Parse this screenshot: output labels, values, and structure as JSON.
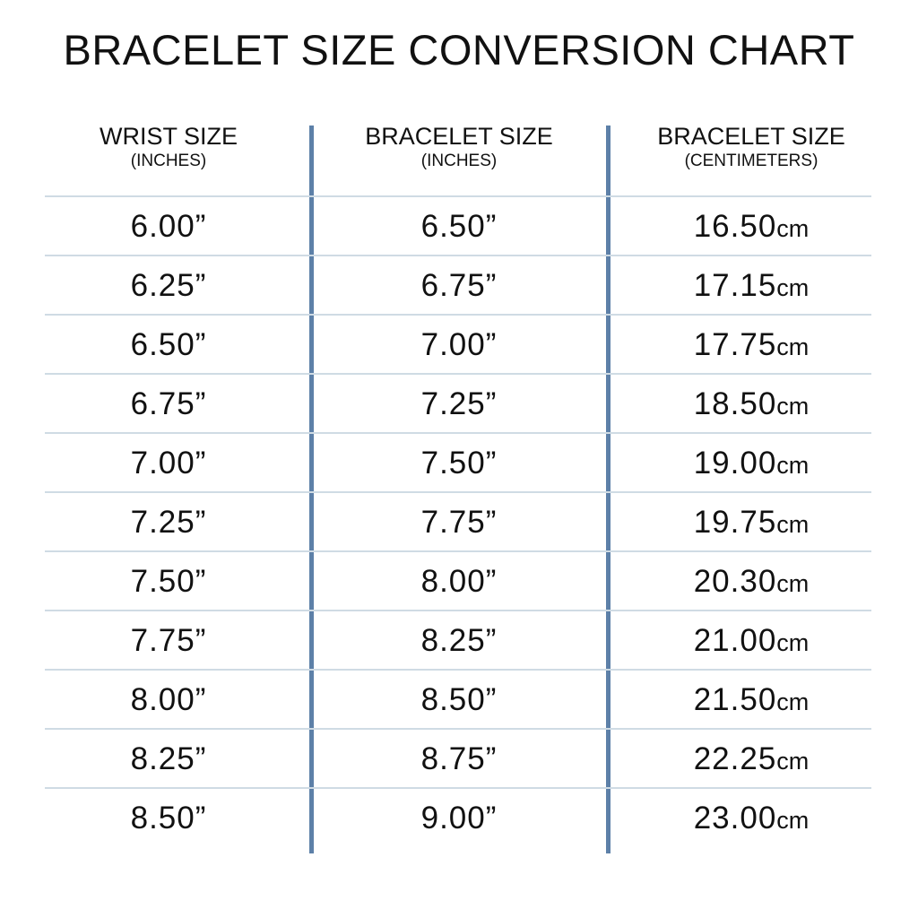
{
  "chart_data": {
    "type": "table",
    "title": "BRACELET SIZE CONVERSION CHART",
    "columns": [
      {
        "label": "WRIST SIZE",
        "sublabel": "(INCHES)"
      },
      {
        "label": "BRACELET SIZE",
        "sublabel": "(INCHES)"
      },
      {
        "label": "BRACELET SIZE",
        "sublabel": "(CENTIMETERS)"
      }
    ],
    "rows": [
      [
        "6.00”",
        "6.50”",
        "16.50"
      ],
      [
        "6.25”",
        "6.75”",
        "17.15"
      ],
      [
        "6.50”",
        "7.00”",
        "17.75"
      ],
      [
        "6.75”",
        "7.25”",
        "18.50"
      ],
      [
        "7.00”",
        "7.50”",
        "19.00"
      ],
      [
        "7.25”",
        "7.75”",
        "19.75"
      ],
      [
        "7.50”",
        "8.00”",
        "20.30"
      ],
      [
        "7.75”",
        "8.25”",
        "21.00"
      ],
      [
        "8.00”",
        "8.50”",
        "21.50"
      ],
      [
        "8.25”",
        "8.75”",
        "22.25"
      ],
      [
        "8.50”",
        "9.00”",
        "23.00"
      ]
    ],
    "cm_unit": "cm",
    "colors": {
      "divider": "#5d80a8",
      "row_line": "#cfdbe4",
      "text": "#111111"
    }
  }
}
